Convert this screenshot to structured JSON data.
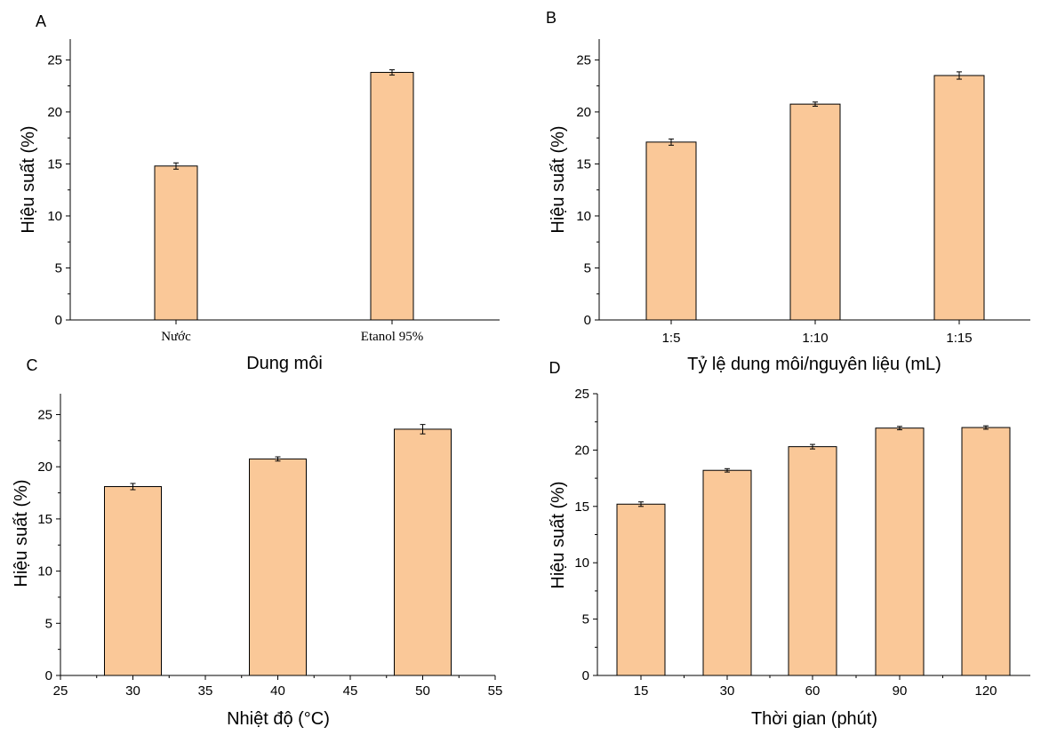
{
  "colors": {
    "bar_fill": "#fac898",
    "bar_stroke": "#000000",
    "axis": "#000000"
  },
  "chart_data": [
    {
      "panel": "A",
      "type": "bar",
      "categories": [
        "Nước",
        "Etanol 95%"
      ],
      "values": [
        14.8,
        23.8
      ],
      "errors": [
        0.3,
        0.25
      ],
      "xlabel": "Dung môi",
      "ylabel": "Hiệu suất (%)",
      "ylim": [
        0,
        27
      ],
      "yticks": [
        "0",
        "5",
        "10",
        "15",
        "20",
        "25"
      ],
      "grid": false
    },
    {
      "panel": "B",
      "type": "bar",
      "categories": [
        "1:5",
        "1:10",
        "1:15"
      ],
      "values": [
        17.1,
        20.75,
        23.5
      ],
      "errors": [
        0.3,
        0.2,
        0.35
      ],
      "xlabel": "Tỷ lệ dung môi/nguyên liệu (mL)",
      "ylabel": "Hiệu suất (%)",
      "ylim": [
        0,
        27
      ],
      "yticks": [
        "0",
        "5",
        "10",
        "15",
        "20",
        "25"
      ],
      "grid": false
    },
    {
      "panel": "C",
      "type": "bar",
      "categories": [
        "30",
        "40",
        "50"
      ],
      "x": [
        30,
        40,
        50
      ],
      "values": [
        18.1,
        20.75,
        23.6
      ],
      "errors": [
        0.3,
        0.2,
        0.45
      ],
      "xlabel": "Nhiệt độ (°C)",
      "ylabel": "Hiệu suất (%)",
      "xlim": [
        25,
        55
      ],
      "xticks": [
        "25",
        "30",
        "35",
        "40",
        "45",
        "50",
        "55"
      ],
      "ylim": [
        0,
        27
      ],
      "yticks": [
        "0",
        "5",
        "10",
        "15",
        "20",
        "25"
      ],
      "grid": false
    },
    {
      "panel": "D",
      "type": "bar",
      "categories": [
        "15",
        "30",
        "60",
        "90",
        "120"
      ],
      "values": [
        15.2,
        18.2,
        20.3,
        21.95,
        22.0
      ],
      "errors": [
        0.2,
        0.15,
        0.2,
        0.15,
        0.15
      ],
      "xlabel": "Thời gian (phút)",
      "ylabel": "Hiệu suất (%)",
      "ylim": [
        0,
        25
      ],
      "yticks": [
        "0",
        "5",
        "10",
        "15",
        "20",
        "25"
      ],
      "grid": false
    }
  ]
}
